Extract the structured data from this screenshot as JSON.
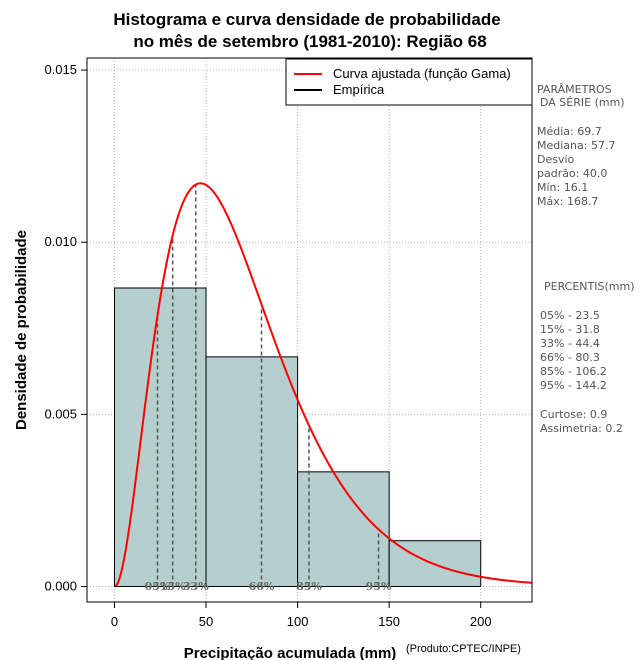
{
  "chart_data": {
    "type": "histogram",
    "title_line1": "Histograma e curva densidade de probabilidade",
    "title_line2": "no mês de setembro (1981-2010): Região 68",
    "xlabel": "Precipitação acumulada (mm)",
    "ylabel": "Densidade de probabilidade",
    "credit": "(Produto:CPTEC/INPE)",
    "xlim": [
      -15,
      228
    ],
    "ylim": [
      -0.00045,
      0.01535
    ],
    "x_ticks": [
      0,
      50,
      100,
      150,
      200
    ],
    "x_tick_labels": [
      "0",
      "50",
      "100",
      "150",
      "200"
    ],
    "y_ticks": [
      0.0,
      0.005,
      0.01,
      0.015
    ],
    "y_tick_labels": [
      "0.000",
      "0.005",
      "0.010",
      "0.015"
    ],
    "grid": true,
    "bins": [
      {
        "from": 0,
        "to": 50,
        "density": 0.00867
      },
      {
        "from": 50,
        "to": 100,
        "density": 0.00667
      },
      {
        "from": 100,
        "to": 150,
        "density": 0.00333
      },
      {
        "from": 150,
        "to": 200,
        "density": 0.00133
      }
    ],
    "bar_color": "#b5cfcf",
    "curve_color": "#ff0000",
    "fitted_gamma": {
      "shape": 3.06,
      "scale": 22.8
    },
    "percentile_lines": [
      {
        "label": "05%",
        "value": 23.5
      },
      {
        "label": "15%",
        "value": 31.8
      },
      {
        "label": "33%",
        "value": 44.4
      },
      {
        "label": "66%",
        "value": 80.3
      },
      {
        "label": "85%",
        "value": 106.2
      },
      {
        "label": "95%",
        "value": 144.2
      }
    ],
    "legend": {
      "position": "top-right",
      "entries": [
        {
          "label": "Curva ajustada (função Gama)",
          "color": "#ff0000"
        },
        {
          "label": "Empírica",
          "color": "#000000"
        }
      ]
    }
  },
  "side_panel": {
    "params_title_1": "PARÂMETROS",
    "params_title_2": "DA SÉRIE (mm)",
    "media": "Média:  69.7",
    "mediana": "Mediana:  57.7",
    "desvio_1": "Desvio",
    "desvio_2": "padrão:  40.0",
    "min": "Mín:  16.1",
    "max": "Máx:  168.7",
    "percentis_title": "PERCENTIS(mm)",
    "p05": "05% -  23.5",
    "p15": "15% -  31.8",
    "p33": "33% -  44.4",
    "p66": "66% -  80.3",
    "p85": "85% -  106.2",
    "p95": "95% -  144.2",
    "curtose": "Curtose:  0.9",
    "assimetria": "Assimetria:  0.2"
  }
}
